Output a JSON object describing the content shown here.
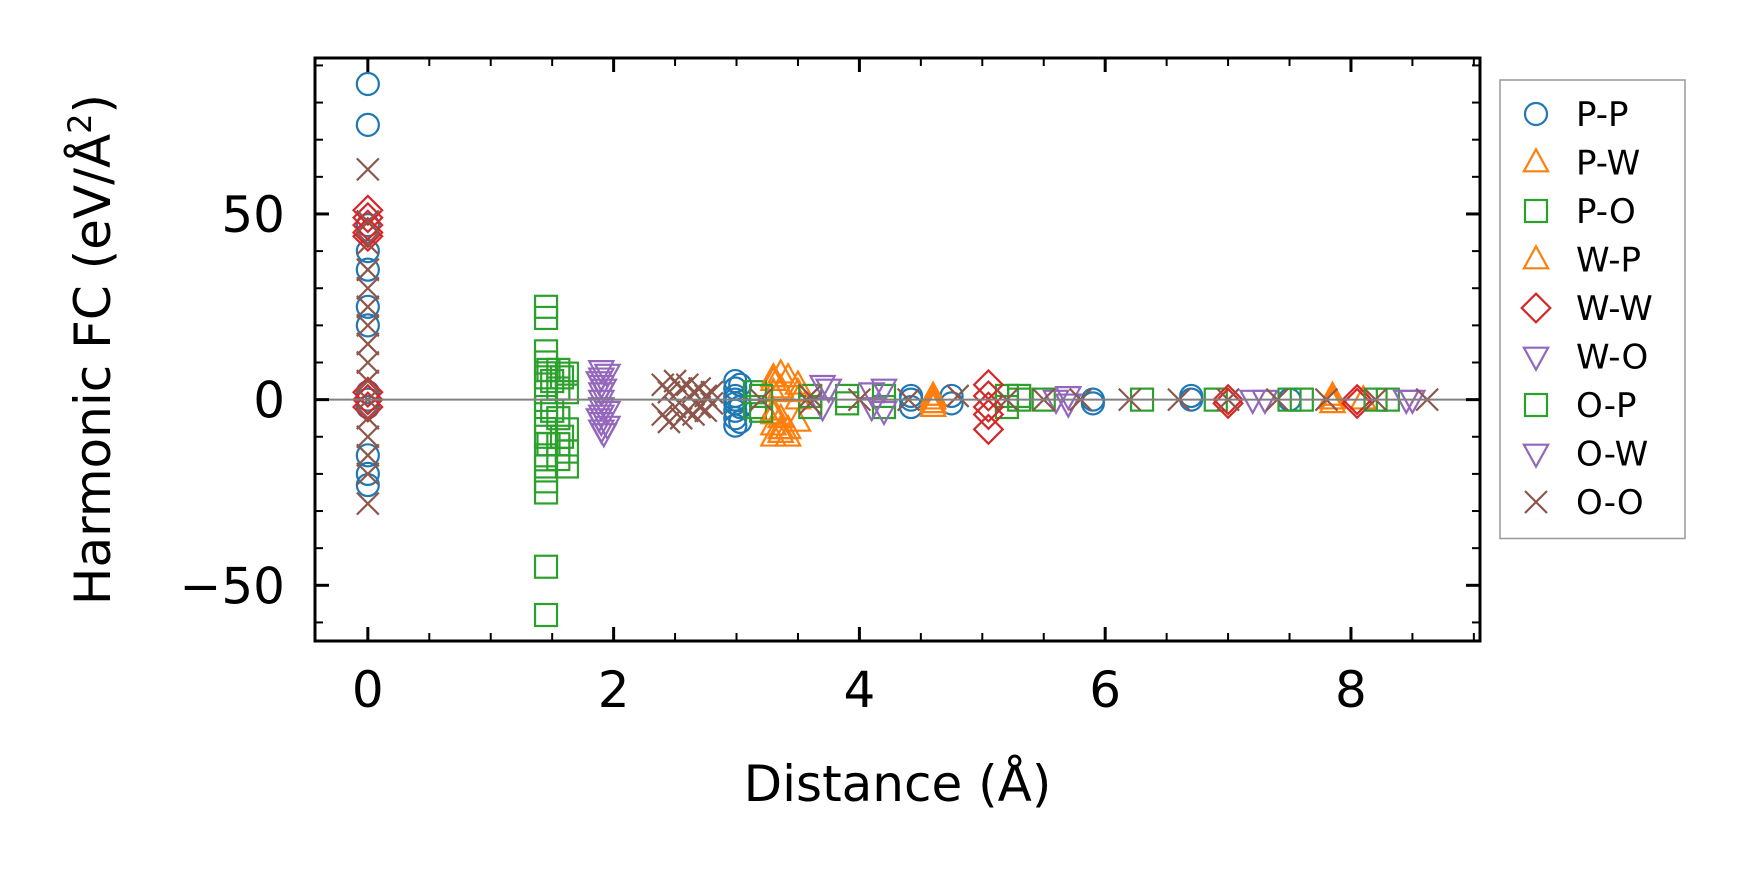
{
  "chart_data": {
    "type": "scatter",
    "xlabel": "Distance (Å)",
    "ylabel_main": "Harmonic FC (eV/Å",
    "ylabel_sup": "2",
    "ylabel_tail": ")",
    "xlim": [
      -0.43,
      9.05
    ],
    "ylim": [
      -65,
      92
    ],
    "xticks": [
      0,
      2,
      4,
      6,
      8
    ],
    "xtick_labels": [
      "0",
      "2",
      "4",
      "6",
      "8"
    ],
    "yticks": [
      -50,
      0,
      50
    ],
    "ytick_labels": [
      "−50",
      "0",
      "50"
    ],
    "grid": false,
    "zero_line": true,
    "legend_position": "outside-right",
    "series": [
      {
        "name": "P-P",
        "marker": "circle",
        "color": "#1f77b4",
        "points": [
          [
            0,
            85
          ],
          [
            0,
            74
          ],
          [
            0,
            47
          ],
          [
            0,
            40
          ],
          [
            0,
            35
          ],
          [
            0,
            25
          ],
          [
            0,
            20
          ],
          [
            0,
            2
          ],
          [
            0,
            0
          ],
          [
            0,
            -2
          ],
          [
            0,
            -15
          ],
          [
            0,
            -20
          ],
          [
            0,
            -23
          ],
          [
            2.99,
            5
          ],
          [
            2.99,
            3
          ],
          [
            2.99,
            1
          ],
          [
            2.99,
            0
          ],
          [
            2.99,
            -1
          ],
          [
            2.99,
            -3
          ],
          [
            2.99,
            -5
          ],
          [
            2.99,
            -7
          ],
          [
            3.03,
            4
          ],
          [
            3.03,
            -2
          ],
          [
            3.03,
            -6
          ],
          [
            4.42,
            1
          ],
          [
            4.42,
            0
          ],
          [
            4.42,
            -2
          ],
          [
            4.75,
            1
          ],
          [
            4.75,
            -1
          ],
          [
            5.9,
            0
          ],
          [
            5.9,
            -1
          ],
          [
            6.7,
            0
          ],
          [
            6.7,
            1
          ],
          [
            7.5,
            0
          ]
        ]
      },
      {
        "name": "P-W",
        "marker": "triangle-up",
        "color": "#ff7f0e",
        "points": [
          [
            3.3,
            5
          ],
          [
            3.3,
            2
          ],
          [
            3.3,
            -3
          ],
          [
            3.3,
            -7
          ],
          [
            3.3,
            -10
          ],
          [
            3.36,
            7
          ],
          [
            3.36,
            -5
          ],
          [
            3.36,
            -9
          ],
          [
            3.42,
            6
          ],
          [
            3.42,
            -8
          ],
          [
            3.5,
            4
          ],
          [
            3.5,
            -6
          ],
          [
            3.5,
            0
          ],
          [
            4.6,
            -1
          ],
          [
            4.6,
            0
          ],
          [
            4.6,
            -2
          ],
          [
            7.85,
            0
          ],
          [
            7.85,
            -1
          ],
          [
            8.1,
            0
          ]
        ]
      },
      {
        "name": "P-O",
        "marker": "square",
        "color": "#2ca02c",
        "points": [
          [
            1.45,
            25
          ],
          [
            1.45,
            22
          ],
          [
            1.45,
            13
          ],
          [
            1.45,
            10
          ],
          [
            1.45,
            6
          ],
          [
            1.45,
            2
          ],
          [
            1.45,
            -2
          ],
          [
            1.45,
            -6
          ],
          [
            1.45,
            -10
          ],
          [
            1.45,
            -15
          ],
          [
            1.45,
            -18
          ],
          [
            1.45,
            -22
          ],
          [
            1.45,
            -25
          ],
          [
            1.45,
            -45
          ],
          [
            1.45,
            -58
          ],
          [
            1.47,
            8
          ],
          [
            1.47,
            -12
          ],
          [
            1.55,
            8
          ],
          [
            1.55,
            3
          ],
          [
            1.55,
            -5
          ],
          [
            1.55,
            -12
          ],
          [
            1.55,
            -16
          ],
          [
            1.62,
            7
          ],
          [
            1.62,
            2
          ],
          [
            1.62,
            -8
          ],
          [
            1.62,
            -14
          ],
          [
            1.62,
            -18
          ],
          [
            3.15,
            2
          ],
          [
            3.15,
            -2
          ],
          [
            3.6,
            1
          ],
          [
            3.6,
            -2
          ],
          [
            4.2,
            1
          ],
          [
            4.2,
            -2
          ],
          [
            5.2,
            1
          ],
          [
            5.2,
            -2
          ],
          [
            5.5,
            0
          ],
          [
            6.9,
            0
          ],
          [
            7.5,
            0
          ],
          [
            8.3,
            0
          ]
        ]
      },
      {
        "name": "W-P",
        "marker": "triangle-up",
        "color": "#ff7f0e",
        "points": [
          [
            3.3,
            6
          ],
          [
            3.3,
            -4
          ],
          [
            3.36,
            3
          ],
          [
            3.36,
            -8
          ],
          [
            3.42,
            -10
          ],
          [
            3.5,
            2
          ],
          [
            4.6,
            1
          ],
          [
            7.85,
            1
          ]
        ]
      },
      {
        "name": "W-W",
        "marker": "diamond",
        "color": "#d62728",
        "points": [
          [
            0,
            51
          ],
          [
            0,
            49
          ],
          [
            0,
            47
          ],
          [
            0,
            45
          ],
          [
            0,
            44
          ],
          [
            0,
            2
          ],
          [
            0,
            0
          ],
          [
            0,
            -2
          ],
          [
            5.05,
            4
          ],
          [
            5.05,
            1
          ],
          [
            5.05,
            -2
          ],
          [
            5.05,
            -4
          ],
          [
            5.05,
            -8
          ],
          [
            7.0,
            0
          ],
          [
            7.0,
            -1
          ],
          [
            8.05,
            0
          ],
          [
            8.05,
            -1
          ]
        ]
      },
      {
        "name": "W-O",
        "marker": "triangle-down",
        "color": "#9467bd",
        "points": [
          [
            1.9,
            8
          ],
          [
            1.9,
            6
          ],
          [
            1.9,
            4
          ],
          [
            1.9,
            2
          ],
          [
            1.9,
            0
          ],
          [
            1.9,
            -2
          ],
          [
            1.9,
            -4
          ],
          [
            1.9,
            -6
          ],
          [
            1.9,
            -8
          ],
          [
            1.95,
            7
          ],
          [
            1.95,
            -3
          ],
          [
            1.95,
            -7
          ],
          [
            3.7,
            4
          ],
          [
            3.7,
            -2
          ],
          [
            4.2,
            3
          ],
          [
            4.2,
            -3
          ],
          [
            5.7,
            1
          ],
          [
            5.7,
            -1
          ],
          [
            7.2,
            0
          ],
          [
            8.45,
            0
          ]
        ]
      },
      {
        "name": "O-P",
        "marker": "square",
        "color": "#2ca02c",
        "points": [
          [
            1.5,
            5
          ],
          [
            1.5,
            -3
          ],
          [
            1.58,
            6
          ],
          [
            1.58,
            -10
          ],
          [
            3.2,
            1
          ],
          [
            3.2,
            -3
          ],
          [
            3.9,
            1
          ],
          [
            3.9,
            -1
          ],
          [
            5.3,
            1
          ],
          [
            5.3,
            0
          ],
          [
            6.3,
            0
          ],
          [
            7.6,
            0
          ],
          [
            8.2,
            0
          ]
        ]
      },
      {
        "name": "O-W",
        "marker": "triangle-down",
        "color": "#9467bd",
        "points": [
          [
            1.88,
            5
          ],
          [
            1.88,
            -5
          ],
          [
            1.92,
            3
          ],
          [
            1.92,
            -9
          ],
          [
            3.75,
            3
          ],
          [
            4.1,
            2
          ],
          [
            4.1,
            -2
          ],
          [
            5.6,
            0
          ],
          [
            7.3,
            0
          ],
          [
            8.5,
            0
          ]
        ]
      },
      {
        "name": "O-O",
        "marker": "x",
        "color": "#8c564b",
        "points": [
          [
            0,
            62
          ],
          [
            0,
            48
          ],
          [
            0,
            42
          ],
          [
            0,
            35
          ],
          [
            0,
            30
          ],
          [
            0,
            25
          ],
          [
            0,
            20
          ],
          [
            0,
            15
          ],
          [
            0,
            10
          ],
          [
            0,
            5
          ],
          [
            0,
            0
          ],
          [
            0,
            -5
          ],
          [
            0,
            -10
          ],
          [
            0,
            -15
          ],
          [
            0,
            -20
          ],
          [
            0,
            -28
          ],
          [
            2.4,
            4
          ],
          [
            2.4,
            -4
          ],
          [
            2.45,
            2
          ],
          [
            2.45,
            -6
          ],
          [
            2.5,
            5
          ],
          [
            2.5,
            -2
          ],
          [
            2.55,
            3
          ],
          [
            2.55,
            -5
          ],
          [
            2.6,
            4
          ],
          [
            2.6,
            -3
          ],
          [
            2.65,
            2
          ],
          [
            2.65,
            -4
          ],
          [
            2.7,
            3
          ],
          [
            2.7,
            -2
          ],
          [
            2.75,
            1
          ],
          [
            2.75,
            -3
          ],
          [
            2.8,
            2
          ],
          [
            2.8,
            -1
          ],
          [
            3.2,
            0
          ],
          [
            3.6,
            1
          ],
          [
            3.6,
            -1
          ],
          [
            4.0,
            0
          ],
          [
            4.4,
            0
          ],
          [
            4.8,
            1
          ],
          [
            5.2,
            0
          ],
          [
            5.5,
            0
          ],
          [
            5.8,
            0
          ],
          [
            6.2,
            0
          ],
          [
            6.6,
            0
          ],
          [
            7.0,
            0
          ],
          [
            7.4,
            0
          ],
          [
            7.8,
            0
          ],
          [
            8.2,
            0
          ],
          [
            8.62,
            0
          ]
        ]
      }
    ]
  }
}
